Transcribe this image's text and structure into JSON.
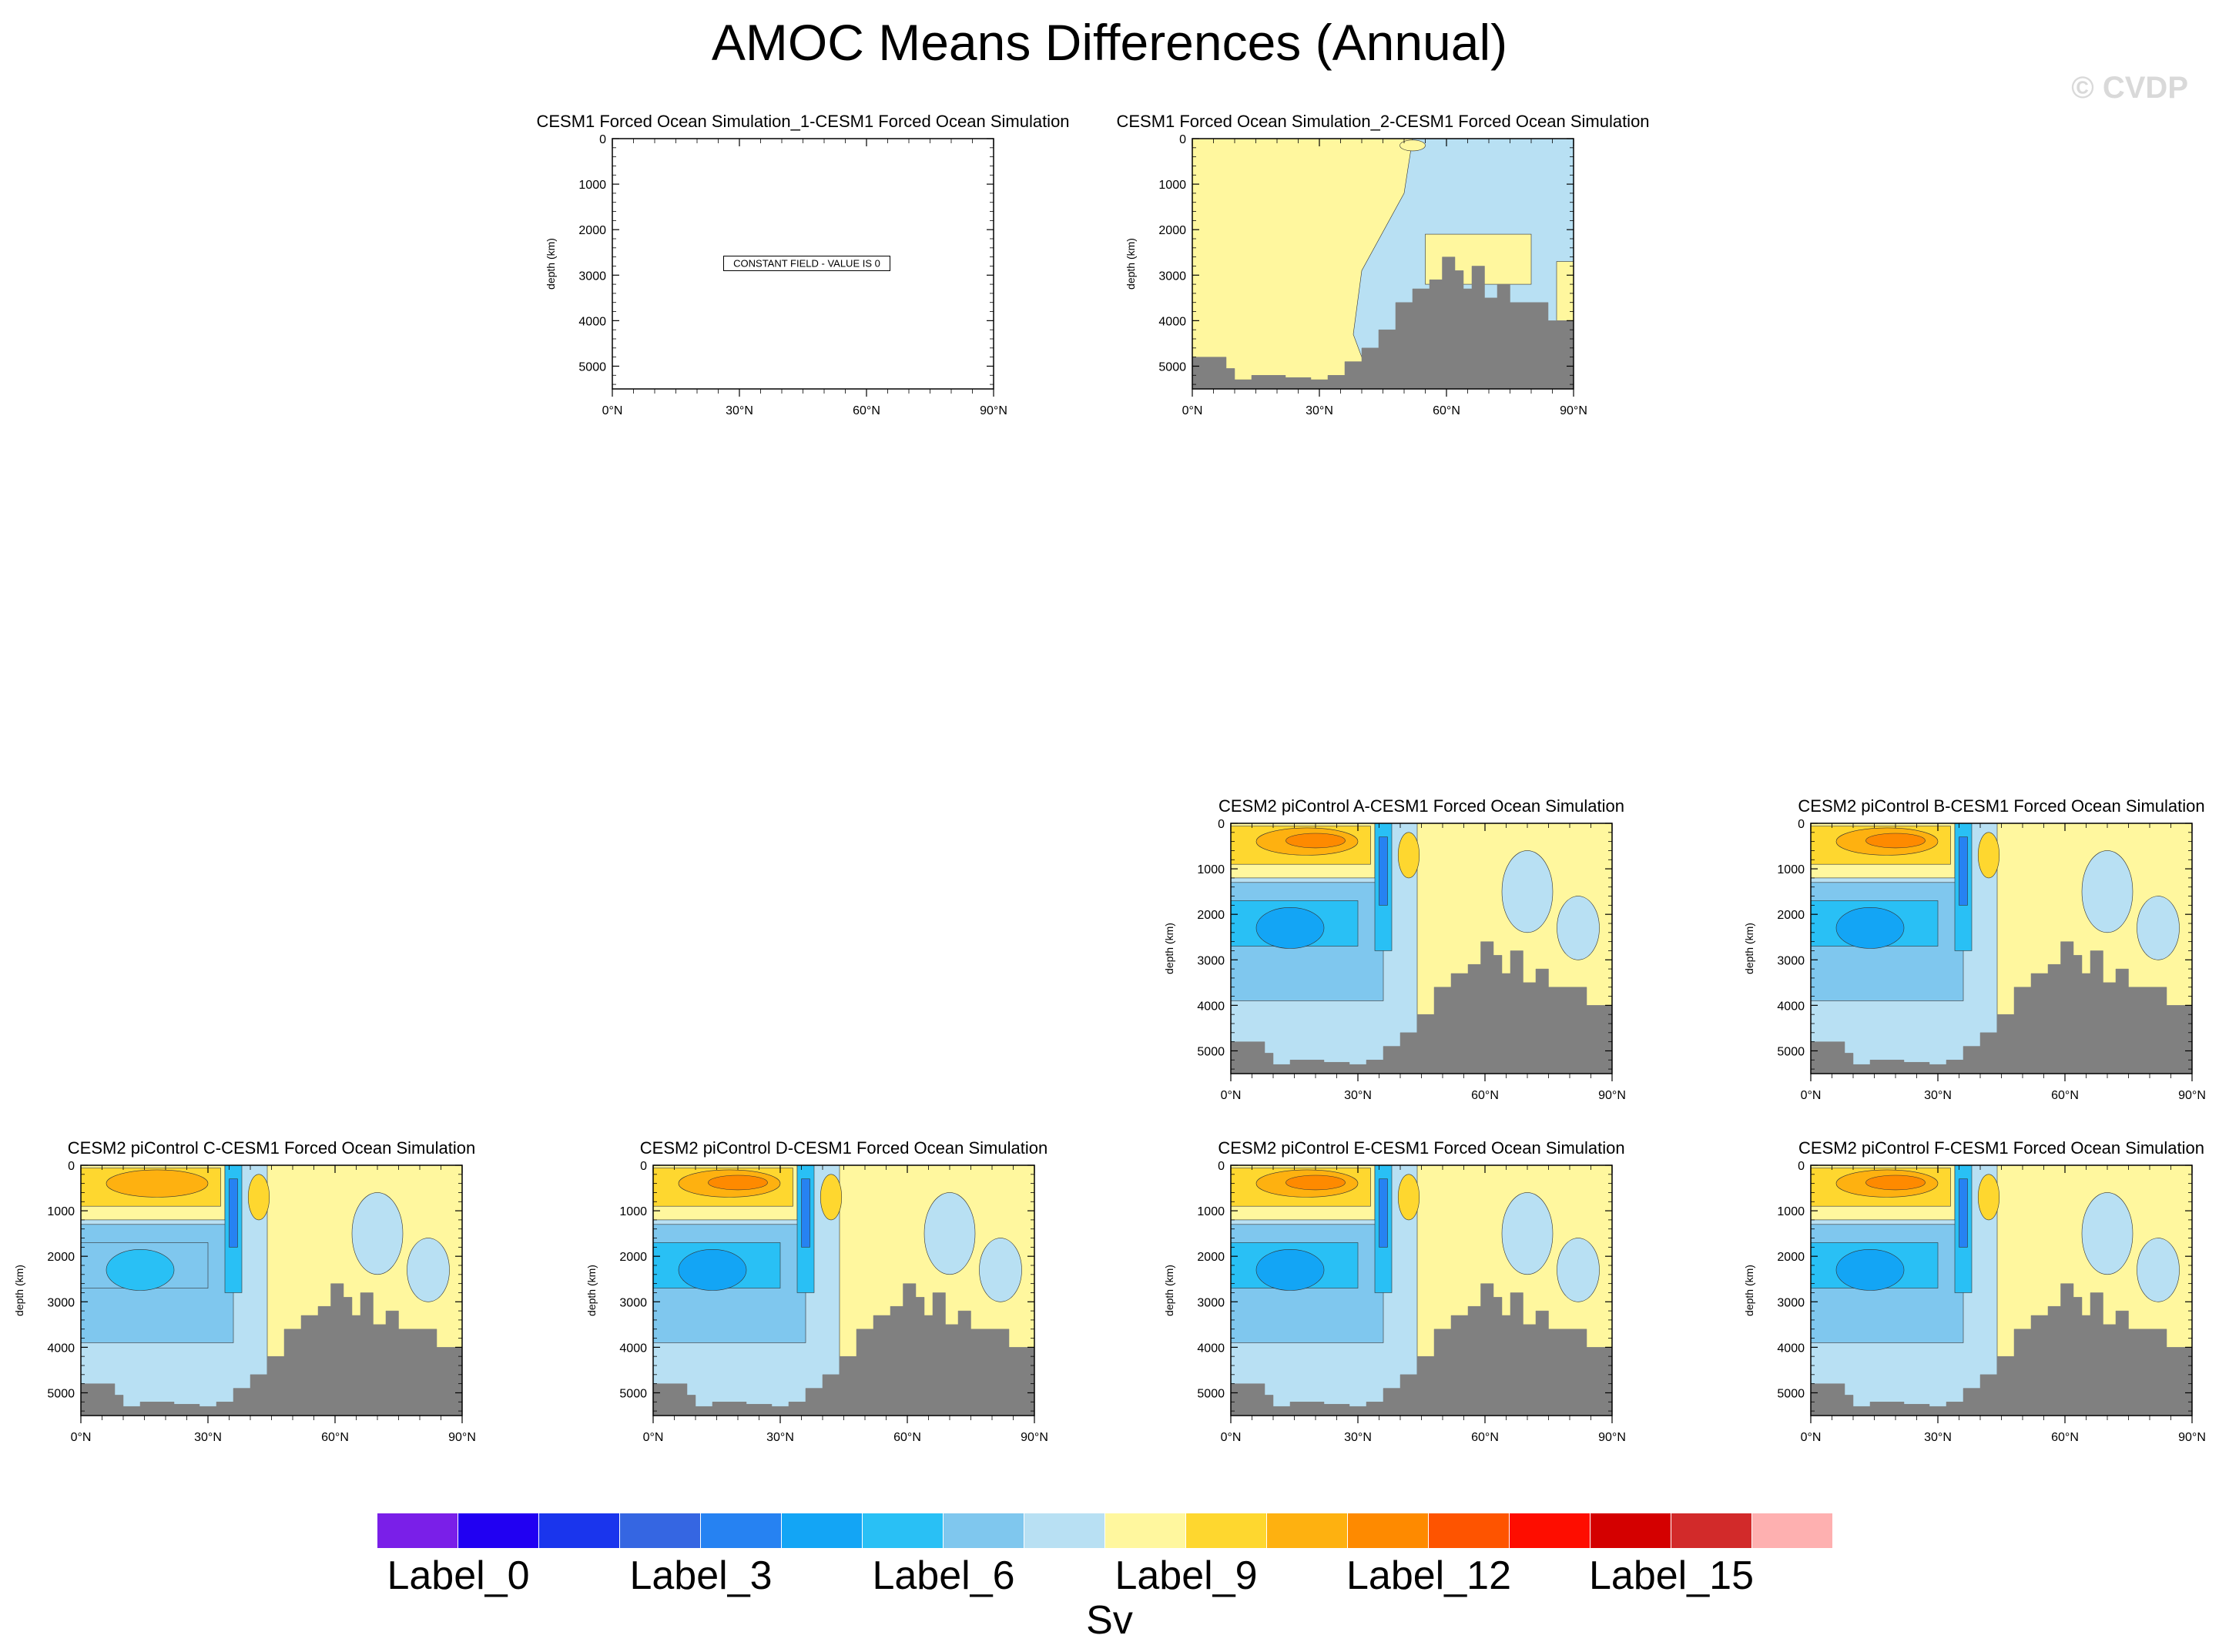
{
  "title": "AMOC Means Differences (Annual)",
  "watermark": "© CVDP",
  "colors": {
    "levels": [
      "#7a1fe8",
      "#2100f2",
      "#1a35ed",
      "#3566e2",
      "#2682f2",
      "#13a5f5",
      "#29c0f5",
      "#7fc7ee",
      "#b8e0f3",
      "#fff79e",
      "#fed72f",
      "#feb110",
      "#fe8a00",
      "#fe5400",
      "#fe0d00",
      "#d40000",
      "#d22a2a",
      "#feb0b0"
    ],
    "topography": "#808080"
  },
  "colorbar": {
    "labels": [
      {
        "text": "Label_0",
        "index": 0
      },
      {
        "text": "Label_3",
        "index": 3
      },
      {
        "text": "Label_6",
        "index": 6
      },
      {
        "text": "Label_9",
        "index": 9
      },
      {
        "text": "Label_12",
        "index": 12
      },
      {
        "text": "Label_15",
        "index": 15
      }
    ],
    "units": "Sv"
  },
  "chart_data": [
    {
      "id": "p1",
      "type": "heatmap",
      "title": "CESM1 Forced Ocean Simulation_1-CESM1 Forced Ocean Simulation",
      "ylabel": "depth (km)",
      "x_ticks": [
        "0°N",
        "30°N",
        "60°N",
        "90°N"
      ],
      "y_ticks": [
        "0",
        "1000",
        "2000",
        "3000",
        "4000",
        "5000"
      ],
      "xlim": [
        0,
        90
      ],
      "ylim": [
        5500,
        0
      ],
      "pattern": "constant",
      "annotation": "CONSTANT FIELD - VALUE IS 0"
    },
    {
      "id": "p2",
      "type": "heatmap",
      "title": "CESM1 Forced Ocean Simulation_2-CESM1 Forced Ocean Simulation",
      "ylabel": "depth (km)",
      "x_ticks": [
        "0°N",
        "30°N",
        "60°N",
        "90°N"
      ],
      "y_ticks": [
        "0",
        "1000",
        "2000",
        "3000",
        "4000",
        "5000"
      ],
      "xlim": [
        0,
        90
      ],
      "ylim": [
        5500,
        0
      ],
      "pattern": "small"
    },
    {
      "id": "pA",
      "type": "heatmap",
      "title": "CESM2 piControl A-CESM1 Forced Ocean Simulation",
      "ylabel": "depth (km)",
      "x_ticks": [
        "0°N",
        "30°N",
        "60°N",
        "90°N"
      ],
      "y_ticks": [
        "0",
        "1000",
        "2000",
        "3000",
        "4000",
        "5000"
      ],
      "xlim": [
        0,
        90
      ],
      "ylim": [
        5500,
        0
      ],
      "pattern": "cell"
    },
    {
      "id": "pB",
      "type": "heatmap",
      "title": "CESM2 piControl B-CESM1 Forced Ocean Simulation",
      "ylabel": "depth (km)",
      "x_ticks": [
        "0°N",
        "30°N",
        "60°N",
        "90°N"
      ],
      "y_ticks": [
        "0",
        "1000",
        "2000",
        "3000",
        "4000",
        "5000"
      ],
      "xlim": [
        0,
        90
      ],
      "ylim": [
        5500,
        0
      ],
      "pattern": "cell"
    },
    {
      "id": "pC",
      "type": "heatmap",
      "title": "CESM2 piControl C-CESM1 Forced Ocean Simulation",
      "ylabel": "depth (km)",
      "x_ticks": [
        "0°N",
        "30°N",
        "60°N",
        "90°N"
      ],
      "y_ticks": [
        "0",
        "1000",
        "2000",
        "3000",
        "4000",
        "5000"
      ],
      "xlim": [
        0,
        90
      ],
      "ylim": [
        5500,
        0
      ],
      "pattern": "cell-weak"
    },
    {
      "id": "pD",
      "type": "heatmap",
      "title": "CESM2 piControl D-CESM1 Forced Ocean Simulation",
      "ylabel": "depth (km)",
      "x_ticks": [
        "0°N",
        "30°N",
        "60°N",
        "90°N"
      ],
      "y_ticks": [
        "0",
        "1000",
        "2000",
        "3000",
        "4000",
        "5000"
      ],
      "xlim": [
        0,
        90
      ],
      "ylim": [
        5500,
        0
      ],
      "pattern": "cell"
    },
    {
      "id": "pE",
      "type": "heatmap",
      "title": "CESM2 piControl E-CESM1 Forced Ocean Simulation",
      "ylabel": "depth (km)",
      "x_ticks": [
        "0°N",
        "30°N",
        "60°N",
        "90°N"
      ],
      "y_ticks": [
        "0",
        "1000",
        "2000",
        "3000",
        "4000",
        "5000"
      ],
      "xlim": [
        0,
        90
      ],
      "ylim": [
        5500,
        0
      ],
      "pattern": "cell"
    },
    {
      "id": "pF",
      "type": "heatmap",
      "title": "CESM2 piControl F-CESM1 Forced Ocean Simulation",
      "ylabel": "depth (km)",
      "x_ticks": [
        "0°N",
        "30°N",
        "60°N",
        "90°N"
      ],
      "y_ticks": [
        "0",
        "1000",
        "2000",
        "3000",
        "4000",
        "5000"
      ],
      "xlim": [
        0,
        90
      ],
      "ylim": [
        5500,
        0
      ],
      "pattern": "cell"
    }
  ]
}
